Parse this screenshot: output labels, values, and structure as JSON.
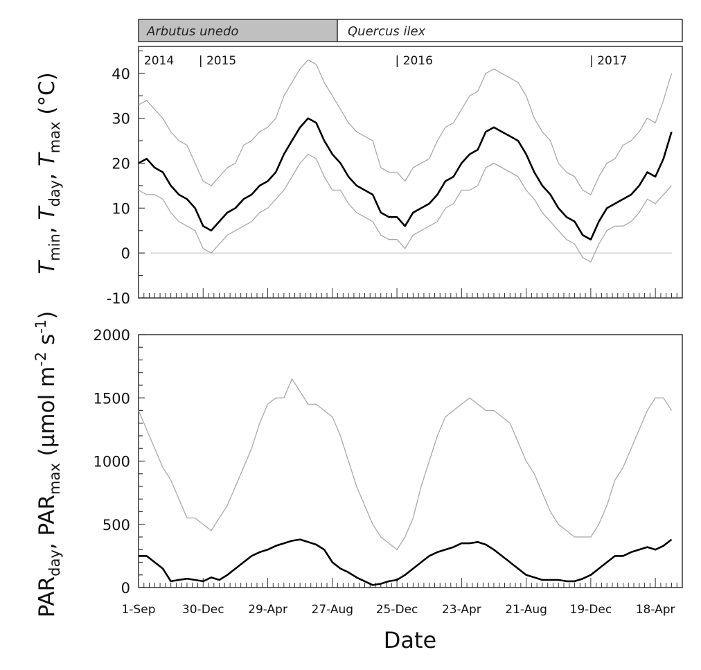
{
  "species_bar": [
    {
      "label": "Arbutus unedo",
      "color": "#c0c0c0",
      "start_label": "1-Sep",
      "share": 0.366
    },
    {
      "label": "Quercus ilex",
      "color": "#ffffff"
    }
  ],
  "year_labels": [
    {
      "text": "2014",
      "day": 38
    },
    {
      "text": "| 2015",
      "day": 122
    },
    {
      "text": "| 2016",
      "day": 487
    },
    {
      "text": "| 2017",
      "day": 848
    }
  ],
  "chart_data": [
    {
      "type": "line",
      "title": "",
      "ylabel": {
        "t1": "T",
        "s1": "min",
        "sep1": ", ",
        "t2": "T",
        "s2": "day",
        "sep2": ", ",
        "t3": "T",
        "s3": "max",
        "unit": " (°C)"
      },
      "ylim": [
        -10,
        46
      ],
      "yticks": [
        -10,
        0,
        10,
        20,
        30,
        40
      ],
      "reference_line": 0,
      "x_step_days": 15,
      "xlim_days": [
        0,
        1010
      ],
      "series": [
        {
          "name": "Tmax",
          "color": "#a8a8a8",
          "values": [
            33,
            34,
            32,
            30,
            27,
            25,
            24,
            20,
            16,
            15,
            17,
            19,
            20,
            24,
            25,
            27,
            28,
            30,
            35,
            38,
            41,
            43,
            42,
            38,
            35,
            32,
            29,
            27,
            26,
            25,
            19,
            18,
            18,
            16,
            19,
            20,
            21,
            25,
            28,
            29,
            32,
            35,
            36,
            40,
            41,
            40,
            39,
            38,
            35,
            30,
            27,
            25,
            20,
            18,
            17,
            14,
            13,
            17,
            20,
            21,
            24,
            25,
            27,
            30,
            29,
            34,
            40
          ]
        },
        {
          "name": "Tmin",
          "color": "#a8a8a8",
          "values": [
            14,
            13,
            13,
            12,
            9,
            7,
            6,
            5,
            1,
            0,
            2,
            4,
            5,
            6,
            7,
            9,
            10,
            12,
            14,
            17,
            20,
            22,
            21,
            17,
            14,
            14,
            11,
            9,
            8,
            7,
            4,
            3,
            3,
            1,
            4,
            5,
            6,
            7,
            10,
            11,
            14,
            14,
            15,
            19,
            20,
            19,
            18,
            17,
            14,
            12,
            9,
            7,
            5,
            3,
            2,
            -1,
            -2,
            2,
            5,
            6,
            6,
            7,
            9,
            12,
            11,
            13,
            15
          ]
        },
        {
          "name": "Tday",
          "color": "#000000",
          "values": [
            20,
            21,
            19,
            18,
            15,
            13,
            12,
            10,
            6,
            5,
            7,
            9,
            10,
            12,
            13,
            15,
            16,
            18,
            22,
            25,
            28,
            30,
            29,
            25,
            22,
            20,
            17,
            15,
            14,
            13,
            9,
            8,
            8,
            6,
            9,
            10,
            11,
            13,
            16,
            17,
            20,
            22,
            23,
            27,
            28,
            27,
            26,
            25,
            22,
            18,
            15,
            13,
            10,
            8,
            7,
            4,
            3,
            7,
            10,
            11,
            12,
            13,
            15,
            18,
            17,
            21,
            27
          ]
        }
      ]
    },
    {
      "type": "line",
      "title": "",
      "xlabel": "Date",
      "ylabel": {
        "t1": "PAR",
        "s1": "day",
        "sep1": ", ",
        "t2": "PAR",
        "s2": "max",
        "unit": " (µmol m",
        "e1": "-2",
        "unit2": " s",
        "e2": "-1",
        "close": ")"
      },
      "ylim": [
        0,
        2000
      ],
      "yticks": [
        0,
        500,
        1000,
        1500,
        2000
      ],
      "x_step_days": 15,
      "xlim_days": [
        0,
        1010
      ],
      "xticks": [
        {
          "label": "1-Sep",
          "day": 0
        },
        {
          "label": "30-Dec",
          "day": 120
        },
        {
          "label": "29-Apr",
          "day": 240
        },
        {
          "label": "27-Aug",
          "day": 360
        },
        {
          "label": "25-Dec",
          "day": 480
        },
        {
          "label": "23-Apr",
          "day": 600
        },
        {
          "label": "21-Aug",
          "day": 720
        },
        {
          "label": "19-Dec",
          "day": 840
        },
        {
          "label": "18-Apr",
          "day": 960
        }
      ],
      "series": [
        {
          "name": "PARmax",
          "color": "#a8a8a8",
          "values": [
            1400,
            1250,
            1100,
            950,
            850,
            700,
            550,
            550,
            500,
            450,
            550,
            650,
            800,
            950,
            1100,
            1300,
            1450,
            1500,
            1500,
            1650,
            1550,
            1450,
            1450,
            1400,
            1350,
            1200,
            1000,
            800,
            650,
            500,
            400,
            350,
            300,
            400,
            550,
            800,
            1000,
            1200,
            1350,
            1400,
            1450,
            1500,
            1450,
            1400,
            1400,
            1350,
            1300,
            1150,
            1000,
            900,
            750,
            600,
            500,
            450,
            400,
            400,
            400,
            500,
            650,
            850,
            950,
            1100,
            1250,
            1400,
            1500,
            1500,
            1400
          ]
        },
        {
          "name": "PARday",
          "color": "#000000",
          "values": [
            250,
            250,
            200,
            150,
            50,
            60,
            70,
            60,
            50,
            80,
            60,
            100,
            150,
            200,
            250,
            280,
            300,
            330,
            350,
            370,
            380,
            360,
            340,
            300,
            200,
            150,
            120,
            80,
            50,
            20,
            30,
            50,
            60,
            100,
            150,
            200,
            250,
            280,
            300,
            320,
            350,
            350,
            360,
            340,
            300,
            250,
            200,
            150,
            100,
            80,
            60,
            60,
            60,
            50,
            50,
            70,
            100,
            150,
            200,
            250,
            250,
            280,
            300,
            320,
            300,
            330,
            380
          ]
        }
      ]
    }
  ]
}
